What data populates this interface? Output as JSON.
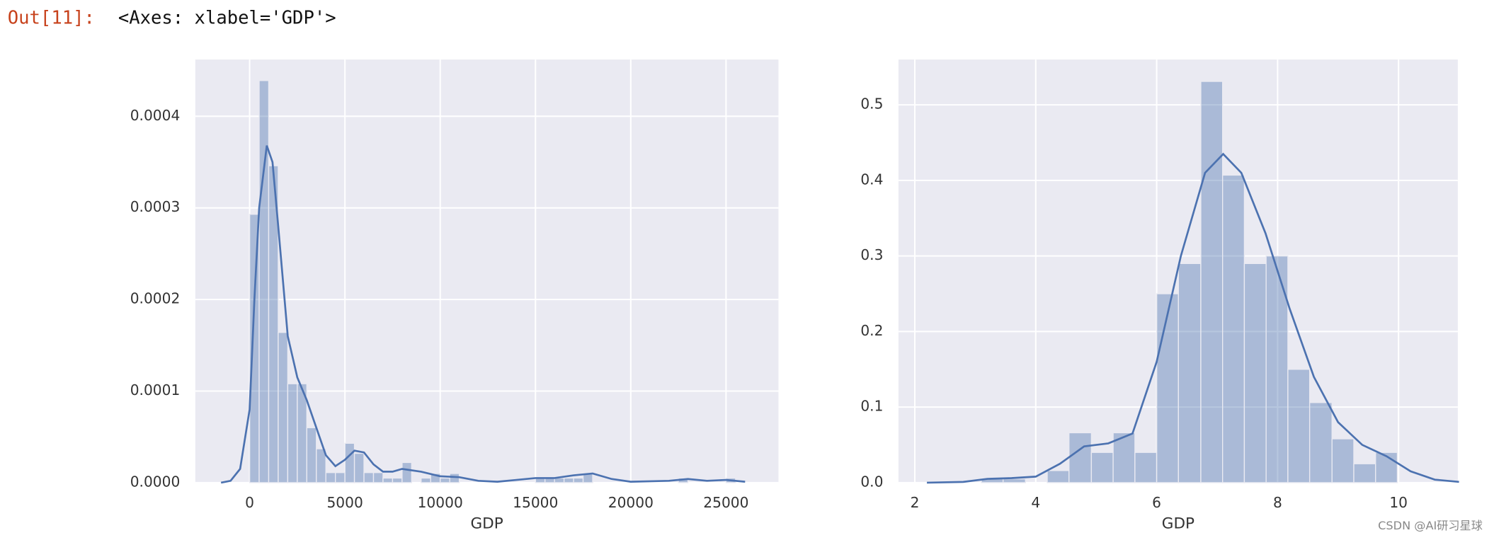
{
  "prompt": "Out[11]:",
  "output": "<Axes: xlabel='GDP'>",
  "watermark": "CSDN @AI研习星球",
  "chart_data": [
    {
      "type": "hist",
      "xlabel": "GDP",
      "color": "#4c72b0",
      "grid": true,
      "xlim": [
        -2850,
        27750
      ],
      "ylim": [
        0,
        0.000462
      ],
      "xticks": [
        0,
        5000,
        10000,
        15000,
        20000,
        25000
      ],
      "yticks": [
        {
          "value": 0,
          "label": "0.0000"
        },
        0.0001,
        0.0002,
        0.0003,
        0.0004
      ],
      "bins": [
        0,
        500,
        1000,
        1500,
        2000,
        2500,
        3000,
        3500,
        4000,
        4500,
        5000,
        5500,
        6000,
        6500,
        7000,
        7500,
        8000,
        8500,
        9000,
        9500,
        10000,
        10500,
        11000,
        11500,
        12000,
        12500,
        13000,
        13500,
        14000,
        14500,
        15000,
        15500,
        16000,
        16500,
        17000,
        17500,
        18000,
        18500,
        19000,
        19500,
        20000,
        20500,
        21000,
        21500,
        22000,
        22500,
        23000,
        23500,
        24000,
        24500,
        25000,
        25500
      ],
      "counts": [
        0.000293,
        0.000439,
        0.000346,
        0.000164,
        0.000108,
        0.000108,
        6e-05,
        3.7e-05,
        1.1e-05,
        1.1e-05,
        4.3e-05,
        3.2e-05,
        1.1e-05,
        1.1e-05,
        5e-06,
        5e-06,
        2.2e-05,
        0,
        5e-06,
        1e-05,
        5e-06,
        1e-05,
        0,
        0,
        0,
        0,
        0,
        0,
        0,
        0,
        5e-06,
        5e-06,
        5e-06,
        5e-06,
        5e-06,
        1e-05,
        0,
        0,
        0,
        0,
        0,
        0,
        0,
        0,
        0,
        5e-06,
        0,
        0,
        0,
        0,
        5e-06
      ],
      "kde": {
        "x": [
          -1500,
          -1000,
          -500,
          0,
          250,
          500,
          900,
          1200,
          1500,
          2000,
          2500,
          3000,
          3500,
          4000,
          4500,
          5000,
          5500,
          6000,
          6500,
          7000,
          7500,
          8000,
          9000,
          10000,
          11000,
          12000,
          13000,
          14000,
          15000,
          16000,
          17000,
          18000,
          19000,
          20000,
          22000,
          23000,
          24000,
          25000,
          26000
        ],
        "y": [
          0,
          2e-06,
          1.5e-05,
          8e-05,
          0.0002,
          0.0003,
          0.000368,
          0.00035,
          0.00028,
          0.00016,
          0.000115,
          9e-05,
          6e-05,
          3e-05,
          1.8e-05,
          2.5e-05,
          3.5e-05,
          3.3e-05,
          2e-05,
          1.2e-05,
          1.2e-05,
          1.5e-05,
          1.2e-05,
          7e-06,
          6e-06,
          2e-06,
          1e-06,
          3e-06,
          5e-06,
          5e-06,
          8e-06,
          1e-05,
          4e-06,
          1e-06,
          2e-06,
          4e-06,
          2e-06,
          3e-06,
          1e-06
        ]
      }
    },
    {
      "type": "hist",
      "xlabel": "GDP",
      "color": "#4c72b0",
      "grid": true,
      "xlim": [
        1.73,
        10.98
      ],
      "ylim": [
        0,
        0.56
      ],
      "xticks": [
        2,
        4,
        6,
        8,
        10
      ],
      "yticks": [
        {
          "value": 0,
          "label": "0.0"
        },
        0.1,
        0.2,
        0.3,
        0.4,
        0.5
      ],
      "bins": [
        3.1,
        3.46,
        3.83,
        4.19,
        4.55,
        4.92,
        5.28,
        5.64,
        6.0,
        6.36,
        6.73,
        7.09,
        7.45,
        7.81,
        8.17,
        8.53,
        8.9,
        9.26,
        9.62,
        9.98
      ],
      "counts": [
        0.005,
        0.005,
        0,
        0.016,
        0.066,
        0.04,
        0.066,
        0.04,
        0.25,
        0.29,
        0.531,
        0.407,
        0.29,
        0.3,
        0.15,
        0.106,
        0.058,
        0.025,
        0.04
      ],
      "kde": {
        "x": [
          2.2,
          2.8,
          3.2,
          3.6,
          4.0,
          4.4,
          4.8,
          5.2,
          5.6,
          6.0,
          6.4,
          6.8,
          7.1,
          7.4,
          7.8,
          8.2,
          8.6,
          9.0,
          9.4,
          9.8,
          10.2,
          10.6,
          11.0
        ],
        "y": [
          0,
          0.001,
          0.005,
          0.006,
          0.008,
          0.025,
          0.048,
          0.052,
          0.065,
          0.16,
          0.3,
          0.41,
          0.435,
          0.41,
          0.33,
          0.23,
          0.14,
          0.08,
          0.05,
          0.035,
          0.015,
          0.004,
          0.001
        ]
      }
    }
  ]
}
